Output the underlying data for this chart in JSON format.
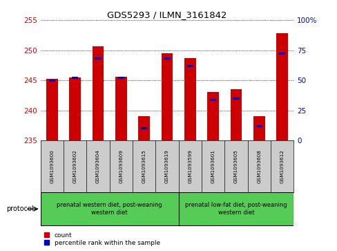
{
  "title": "GDS5293 / ILMN_3161842",
  "samples": [
    "GSM1093600",
    "GSM1093602",
    "GSM1093604",
    "GSM1093609",
    "GSM1093615",
    "GSM1093619",
    "GSM1093599",
    "GSM1093601",
    "GSM1093605",
    "GSM1093608",
    "GSM1093612"
  ],
  "counts": [
    245.2,
    245.5,
    250.6,
    245.6,
    239.0,
    249.5,
    248.7,
    243.1,
    243.5,
    239.1,
    252.8
  ],
  "percentiles": [
    50,
    52,
    68,
    52,
    10,
    68,
    62,
    34,
    35,
    12,
    72
  ],
  "ylim_left": [
    235,
    255
  ],
  "ylim_right": [
    0,
    100
  ],
  "yticks_left": [
    235,
    240,
    245,
    250,
    255
  ],
  "yticks_right": [
    0,
    25,
    50,
    75,
    100
  ],
  "bar_color": "#cc0000",
  "percentile_color": "#0000cc",
  "bar_width": 0.5,
  "group1_label": "prenatal western diet, post-weaning\nwestern diet",
  "group2_label": "prenatal low-fat diet, post-weaning\nwestern diet",
  "group1_count": 6,
  "group2_count": 5,
  "protocol_label": "protocol",
  "legend_count_label": "count",
  "legend_percentile_label": "percentile rank within the sample",
  "background_color": "#ffffff",
  "plot_bg_color": "#ffffff",
  "axis_label_color_left": "#cc0000",
  "axis_label_color_right": "#0000cc",
  "ybase": 235,
  "label_bg_color": "#cccccc",
  "group_bg_color": "#55cc55"
}
